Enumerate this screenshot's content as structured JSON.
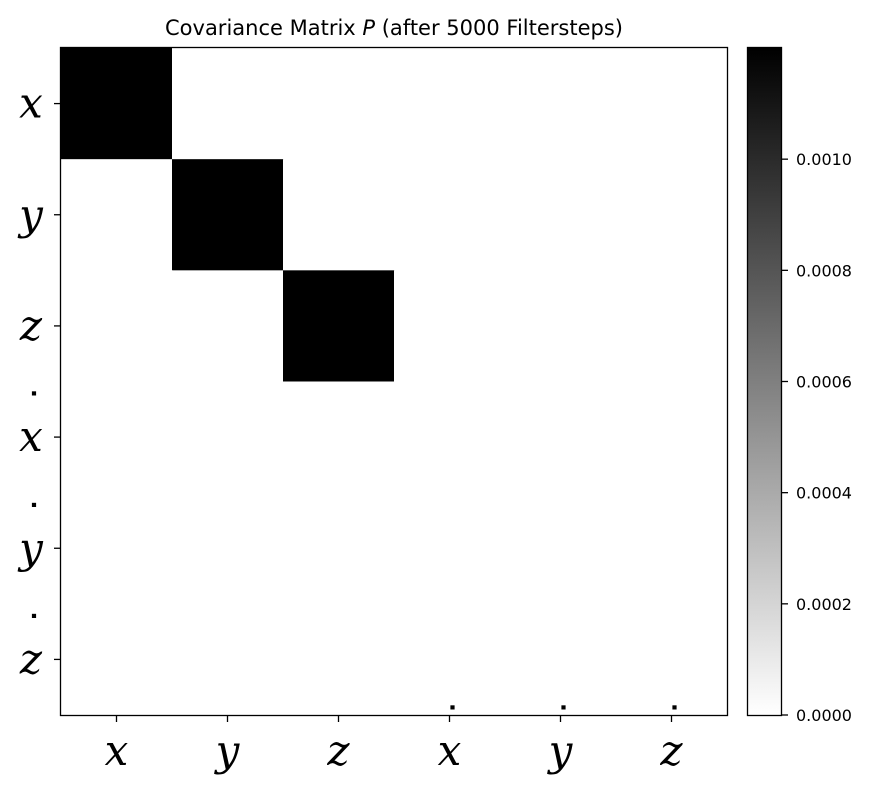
{
  "chart_data": {
    "type": "heatmap",
    "title_prefix": "Covariance Matrix ",
    "title_var": "P",
    "title_suffix": " (after 5000 Filtersteps)",
    "row_labels": [
      {
        "base": "x",
        "dot": false
      },
      {
        "base": "y",
        "dot": false
      },
      {
        "base": "z",
        "dot": false
      },
      {
        "base": "x",
        "dot": true
      },
      {
        "base": "y",
        "dot": true
      },
      {
        "base": "z",
        "dot": true
      }
    ],
    "col_labels": [
      {
        "base": "x",
        "dot": false
      },
      {
        "base": "y",
        "dot": false
      },
      {
        "base": "z",
        "dot": false
      },
      {
        "base": "x",
        "dot": true
      },
      {
        "base": "y",
        "dot": true
      },
      {
        "base": "z",
        "dot": true
      }
    ],
    "values": [
      [
        0.0012,
        0,
        0,
        0,
        0,
        0
      ],
      [
        0,
        0.0012,
        0,
        0,
        0,
        0
      ],
      [
        0,
        0,
        0.0012,
        0,
        0,
        0
      ],
      [
        0,
        0,
        0,
        0,
        0,
        0
      ],
      [
        0,
        0,
        0,
        0,
        0,
        0
      ],
      [
        0,
        0,
        0,
        0,
        0,
        0
      ]
    ],
    "colormap": "gray_r",
    "colorbar": {
      "vmin": 0.0,
      "vmax": 0.0012,
      "ticks": [
        0.0,
        0.0002,
        0.0004,
        0.0006,
        0.0008,
        0.001
      ],
      "tick_labels": [
        "0.0000",
        "0.0002",
        "0.0004",
        "0.0006",
        "0.0008",
        "0.0010"
      ]
    },
    "grid": false
  }
}
